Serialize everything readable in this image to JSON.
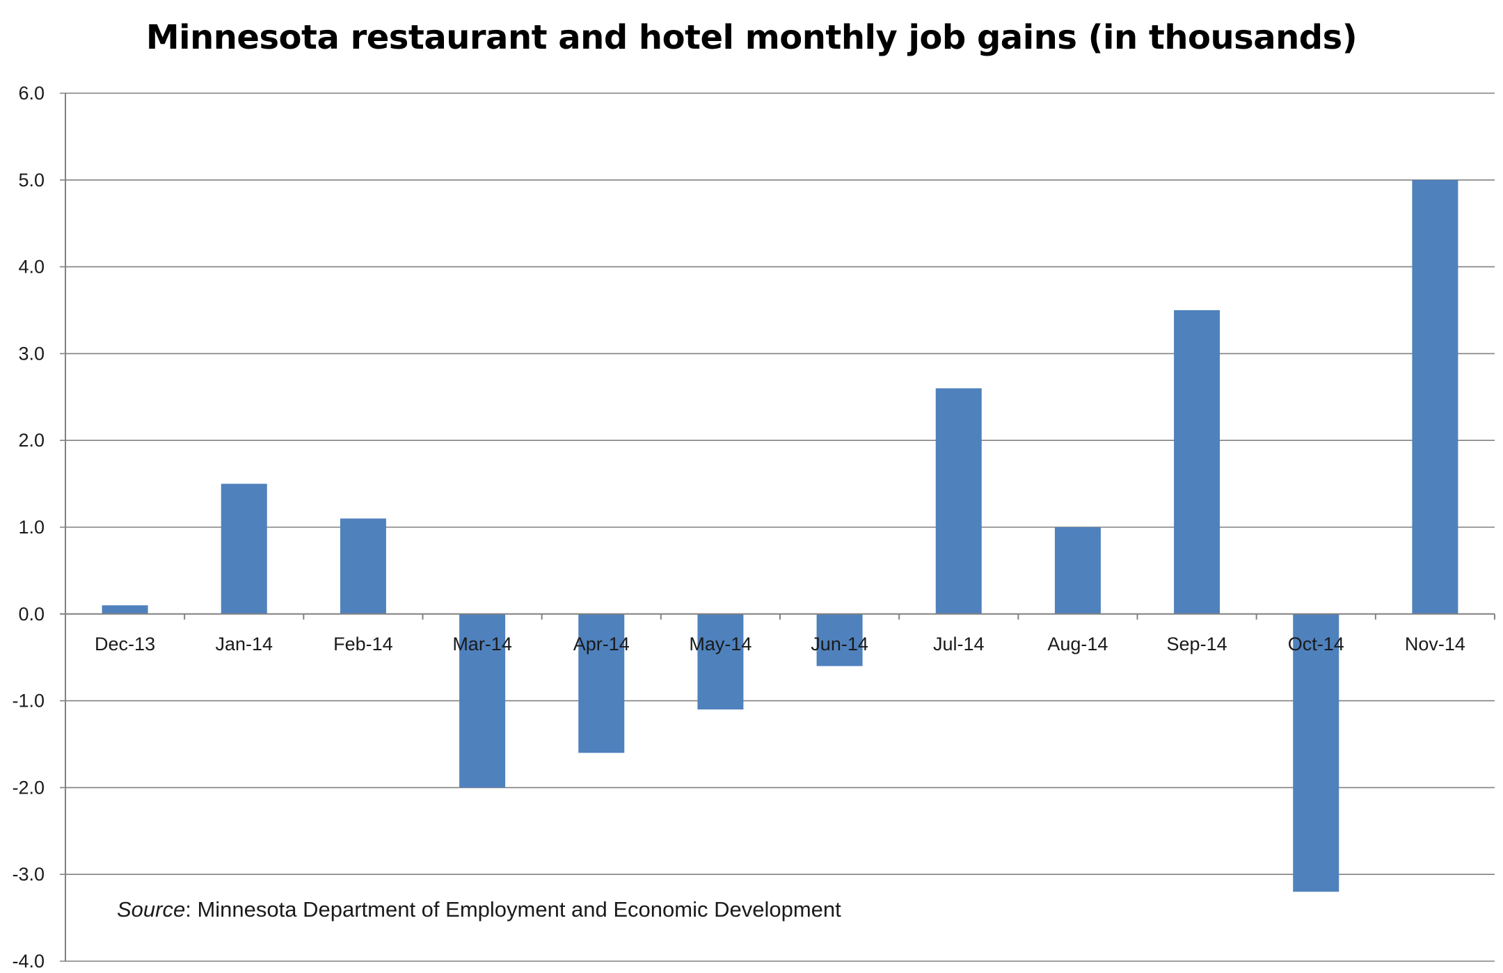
{
  "chart_data": {
    "type": "bar",
    "title": "Minnesota restaurant and hotel monthly job gains (in thousands)",
    "xlabel": "",
    "ylabel": "",
    "categories": [
      "Dec-13",
      "Jan-14",
      "Feb-14",
      "Mar-14",
      "Apr-14",
      "May-14",
      "Jun-14",
      "Jul-14",
      "Aug-14",
      "Sep-14",
      "Oct-14",
      "Nov-14"
    ],
    "values": [
      0.1,
      1.5,
      1.1,
      -2.0,
      -1.6,
      -1.1,
      -0.6,
      2.6,
      1.0,
      3.5,
      -3.2,
      5.0
    ],
    "ylim": [
      -4.0,
      6.0
    ],
    "yticks": [
      "6.0",
      "5.0",
      "4.0",
      "3.0",
      "2.0",
      "1.0",
      "0.0",
      "-1.0",
      "-2.0",
      "-3.0",
      "-4.0"
    ],
    "ytick_values": [
      6,
      5,
      4,
      3,
      2,
      1,
      0,
      -1,
      -2,
      -3,
      -4
    ],
    "grid": true,
    "legend": "none",
    "bar_color": "#4f81bd",
    "gridline_color": "#808080"
  },
  "source": {
    "label": "Source",
    "text": ": Minnesota Department of Employment and Economic Development"
  }
}
